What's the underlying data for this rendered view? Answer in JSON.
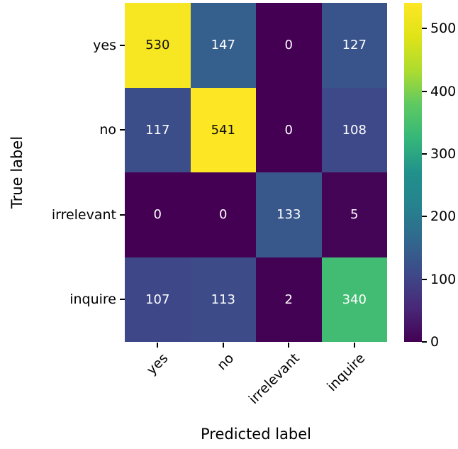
{
  "chart_data": {
    "type": "heatmap",
    "title": "",
    "x_axis_label": "Predicted label",
    "y_axis_label": "True label",
    "x_categories": [
      "yes",
      "no",
      "irrelevant",
      "inquire"
    ],
    "y_categories": [
      "yes",
      "no",
      "irrelevant",
      "inquire"
    ],
    "values": [
      [
        530,
        147,
        0,
        127
      ],
      [
        117,
        541,
        0,
        108
      ],
      [
        0,
        0,
        133,
        5
      ],
      [
        107,
        113,
        2,
        340
      ]
    ],
    "vmin": 0,
    "vmax": 541,
    "colormap": "viridis",
    "colormap_stops": [
      "#440154",
      "#482878",
      "#3e4989",
      "#31688e",
      "#26828e",
      "#21918c",
      "#35b779",
      "#5ec962",
      "#addc30",
      "#dfe318",
      "#fde725"
    ],
    "colorbar_ticks": [
      0,
      100,
      200,
      300,
      400,
      500
    ],
    "colorbar_position": "right",
    "cell_text_color_on_dark": "#ffffff",
    "cell_text_color_on_light": "#101010",
    "tick_color": "#000000",
    "background_color": "#ffffff",
    "grid": false,
    "x_tick_rotation_deg": 45
  }
}
